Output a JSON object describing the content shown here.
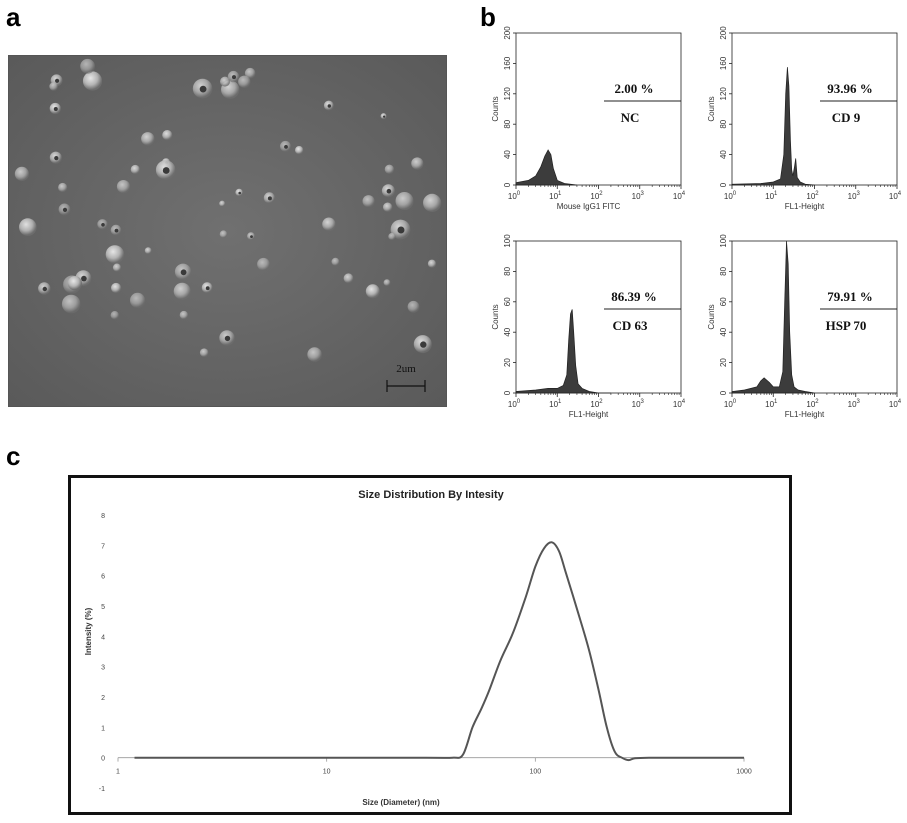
{
  "panels": {
    "a": {
      "letter": "a",
      "scale_bar": "2um"
    },
    "b": {
      "letter": "b"
    },
    "c": {
      "letter": "c"
    }
  },
  "chart_data": [
    {
      "type": "area",
      "panel": "b",
      "xscale": "log",
      "xlim": [
        1,
        10000
      ],
      "ylim": [
        0,
        200
      ],
      "xticks": [
        "10^0",
        "10^1",
        "10^2",
        "10^3",
        "10^4"
      ],
      "yticks": [
        "0",
        "40",
        "80",
        "120",
        "160",
        "200"
      ],
      "xlabel": "Mouse IgG1 FITC",
      "ylabel": "Counts",
      "annotation_pct": "2.00 %",
      "annotation_label": "NC",
      "x": [
        1,
        2,
        3,
        4,
        5,
        6,
        7,
        8,
        10,
        15,
        30
      ],
      "values": [
        3,
        6,
        12,
        24,
        38,
        46,
        40,
        22,
        6,
        2,
        0
      ]
    },
    {
      "type": "area",
      "panel": "b",
      "xscale": "log",
      "xlim": [
        1,
        10000
      ],
      "ylim": [
        0,
        200
      ],
      "xticks": [
        "10^0",
        "10^1",
        "10^2",
        "10^3",
        "10^4"
      ],
      "yticks": [
        "0",
        "40",
        "80",
        "120",
        "160",
        "200"
      ],
      "xlabel": "FL1-Height",
      "ylabel": "Counts",
      "annotation_pct": "93.96 %",
      "annotation_label": "CD 9",
      "x": [
        1,
        5,
        10,
        15,
        18,
        20,
        22,
        24,
        26,
        28,
        30,
        33,
        35,
        38,
        45,
        60,
        100
      ],
      "values": [
        1,
        2,
        4,
        8,
        40,
        120,
        155,
        130,
        60,
        20,
        12,
        25,
        35,
        10,
        4,
        1,
        0
      ]
    },
    {
      "type": "area",
      "panel": "b",
      "xscale": "log",
      "xlim": [
        1,
        10000
      ],
      "ylim": [
        0,
        100
      ],
      "xticks": [
        "10^0",
        "10^1",
        "10^2",
        "10^3",
        "10^4"
      ],
      "yticks": [
        "0",
        "20",
        "40",
        "60",
        "80",
        "100"
      ],
      "xlabel": "FL1-Height",
      "ylabel": "Counts",
      "annotation_pct": "86.39 %",
      "annotation_label": "CD 63",
      "x": [
        1,
        3,
        6,
        10,
        14,
        17,
        19,
        21,
        23,
        25,
        28,
        32,
        40,
        60,
        100,
        200
      ],
      "values": [
        1,
        2,
        3,
        3,
        5,
        12,
        35,
        52,
        55,
        40,
        18,
        6,
        3,
        1,
        0,
        0
      ]
    },
    {
      "type": "area",
      "panel": "b",
      "xscale": "log",
      "xlim": [
        1,
        10000
      ],
      "ylim": [
        0,
        100
      ],
      "xticks": [
        "10^0",
        "10^1",
        "10^2",
        "10^3",
        "10^4"
      ],
      "yticks": [
        "0",
        "20",
        "40",
        "60",
        "80",
        "100"
      ],
      "xlabel": "FL1-Height",
      "ylabel": "Counts",
      "annotation_pct": "79.91 %",
      "annotation_label": "HSP 70",
      "x": [
        1,
        2,
        4,
        5,
        6,
        8,
        10,
        14,
        17,
        19,
        21,
        23,
        25,
        28,
        32,
        40,
        60,
        100
      ],
      "values": [
        1,
        2,
        4,
        8,
        10,
        7,
        4,
        4,
        14,
        60,
        100,
        85,
        40,
        12,
        4,
        2,
        1,
        0
      ]
    },
    {
      "type": "line",
      "panel": "c",
      "title": "Size Distribution By Intesity",
      "xlabel": "Size (Diameter)  (nm)",
      "ylabel": "Intensity  (%)",
      "xscale": "log",
      "xlim": [
        1,
        1000
      ],
      "ylim": [
        -1,
        8
      ],
      "xticks": [
        "1",
        "10",
        "100",
        "1000"
      ],
      "yticks": [
        "-1",
        "0",
        "1",
        "2",
        "3",
        "4",
        "5",
        "6",
        "7",
        "8"
      ],
      "color": "#555555",
      "x": [
        1.2,
        10,
        30,
        40,
        45,
        50,
        55,
        60,
        68,
        78,
        90,
        100,
        110,
        120,
        130,
        140,
        160,
        180,
        200,
        220,
        240,
        260,
        280,
        300,
        350,
        500,
        1000
      ],
      "values": [
        0,
        0,
        0,
        0,
        0.1,
        1.0,
        1.6,
        2.2,
        3.2,
        4.1,
        5.3,
        6.3,
        6.9,
        7.1,
        6.8,
        6.1,
        4.8,
        3.6,
        2.3,
        1.0,
        0.2,
        0.0,
        -0.08,
        -0.02,
        0,
        0,
        0
      ]
    }
  ]
}
